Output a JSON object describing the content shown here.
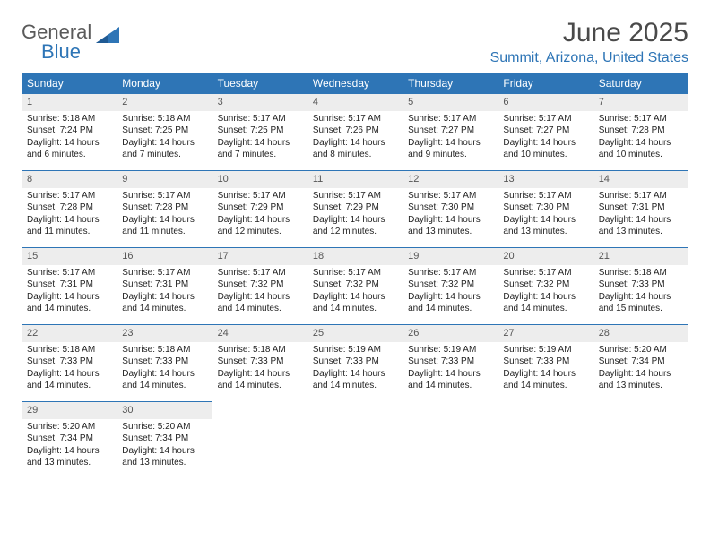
{
  "logo": {
    "top": "General",
    "bottom": "Blue"
  },
  "title": "June 2025",
  "location": "Summit, Arizona, United States",
  "daysOfWeek": [
    "Sunday",
    "Monday",
    "Tuesday",
    "Wednesday",
    "Thursday",
    "Friday",
    "Saturday"
  ],
  "colors": {
    "header_bg": "#2e75b6",
    "header_text": "#ffffff",
    "band_bg": "#ededed",
    "band_border": "#2e75b6",
    "logo_gray": "#5a5a5a",
    "logo_blue": "#2e75b6"
  },
  "startOffset": 0,
  "days": [
    {
      "n": 1,
      "sunrise": "5:18 AM",
      "sunset": "7:24 PM",
      "daylight": "14 hours and 6 minutes."
    },
    {
      "n": 2,
      "sunrise": "5:18 AM",
      "sunset": "7:25 PM",
      "daylight": "14 hours and 7 minutes."
    },
    {
      "n": 3,
      "sunrise": "5:17 AM",
      "sunset": "7:25 PM",
      "daylight": "14 hours and 7 minutes."
    },
    {
      "n": 4,
      "sunrise": "5:17 AM",
      "sunset": "7:26 PM",
      "daylight": "14 hours and 8 minutes."
    },
    {
      "n": 5,
      "sunrise": "5:17 AM",
      "sunset": "7:27 PM",
      "daylight": "14 hours and 9 minutes."
    },
    {
      "n": 6,
      "sunrise": "5:17 AM",
      "sunset": "7:27 PM",
      "daylight": "14 hours and 10 minutes."
    },
    {
      "n": 7,
      "sunrise": "5:17 AM",
      "sunset": "7:28 PM",
      "daylight": "14 hours and 10 minutes."
    },
    {
      "n": 8,
      "sunrise": "5:17 AM",
      "sunset": "7:28 PM",
      "daylight": "14 hours and 11 minutes."
    },
    {
      "n": 9,
      "sunrise": "5:17 AM",
      "sunset": "7:28 PM",
      "daylight": "14 hours and 11 minutes."
    },
    {
      "n": 10,
      "sunrise": "5:17 AM",
      "sunset": "7:29 PM",
      "daylight": "14 hours and 12 minutes."
    },
    {
      "n": 11,
      "sunrise": "5:17 AM",
      "sunset": "7:29 PM",
      "daylight": "14 hours and 12 minutes."
    },
    {
      "n": 12,
      "sunrise": "5:17 AM",
      "sunset": "7:30 PM",
      "daylight": "14 hours and 13 minutes."
    },
    {
      "n": 13,
      "sunrise": "5:17 AM",
      "sunset": "7:30 PM",
      "daylight": "14 hours and 13 minutes."
    },
    {
      "n": 14,
      "sunrise": "5:17 AM",
      "sunset": "7:31 PM",
      "daylight": "14 hours and 13 minutes."
    },
    {
      "n": 15,
      "sunrise": "5:17 AM",
      "sunset": "7:31 PM",
      "daylight": "14 hours and 14 minutes."
    },
    {
      "n": 16,
      "sunrise": "5:17 AM",
      "sunset": "7:31 PM",
      "daylight": "14 hours and 14 minutes."
    },
    {
      "n": 17,
      "sunrise": "5:17 AM",
      "sunset": "7:32 PM",
      "daylight": "14 hours and 14 minutes."
    },
    {
      "n": 18,
      "sunrise": "5:17 AM",
      "sunset": "7:32 PM",
      "daylight": "14 hours and 14 minutes."
    },
    {
      "n": 19,
      "sunrise": "5:17 AM",
      "sunset": "7:32 PM",
      "daylight": "14 hours and 14 minutes."
    },
    {
      "n": 20,
      "sunrise": "5:17 AM",
      "sunset": "7:32 PM",
      "daylight": "14 hours and 14 minutes."
    },
    {
      "n": 21,
      "sunrise": "5:18 AM",
      "sunset": "7:33 PM",
      "daylight": "14 hours and 15 minutes."
    },
    {
      "n": 22,
      "sunrise": "5:18 AM",
      "sunset": "7:33 PM",
      "daylight": "14 hours and 14 minutes."
    },
    {
      "n": 23,
      "sunrise": "5:18 AM",
      "sunset": "7:33 PM",
      "daylight": "14 hours and 14 minutes."
    },
    {
      "n": 24,
      "sunrise": "5:18 AM",
      "sunset": "7:33 PM",
      "daylight": "14 hours and 14 minutes."
    },
    {
      "n": 25,
      "sunrise": "5:19 AM",
      "sunset": "7:33 PM",
      "daylight": "14 hours and 14 minutes."
    },
    {
      "n": 26,
      "sunrise": "5:19 AM",
      "sunset": "7:33 PM",
      "daylight": "14 hours and 14 minutes."
    },
    {
      "n": 27,
      "sunrise": "5:19 AM",
      "sunset": "7:33 PM",
      "daylight": "14 hours and 14 minutes."
    },
    {
      "n": 28,
      "sunrise": "5:20 AM",
      "sunset": "7:34 PM",
      "daylight": "14 hours and 13 minutes."
    },
    {
      "n": 29,
      "sunrise": "5:20 AM",
      "sunset": "7:34 PM",
      "daylight": "14 hours and 13 minutes."
    },
    {
      "n": 30,
      "sunrise": "5:20 AM",
      "sunset": "7:34 PM",
      "daylight": "14 hours and 13 minutes."
    }
  ],
  "labels": {
    "sunrise": "Sunrise:",
    "sunset": "Sunset:",
    "daylight": "Daylight:"
  }
}
